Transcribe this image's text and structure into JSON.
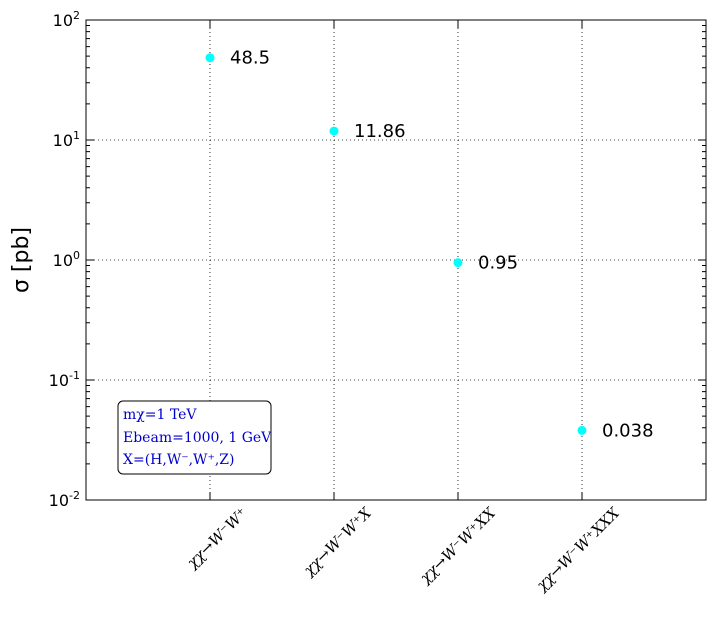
{
  "chart_data": {
    "type": "scatter",
    "ylabel": "σ [pb]",
    "yscale": "log",
    "ylim": [
      0.01,
      100
    ],
    "yticks": [
      {
        "base": "10",
        "exp": "2",
        "value": 100
      },
      {
        "base": "10",
        "exp": "1",
        "value": 10
      },
      {
        "base": "10",
        "exp": "0",
        "value": 1
      },
      {
        "base": "10",
        "exp": "-1",
        "value": 0.1
      },
      {
        "base": "10",
        "exp": "-2",
        "value": 0.01
      }
    ],
    "categories": [
      "χχ→W⁻W⁺",
      "χχ→W⁻W⁺X",
      "χχ→W⁻W⁺XX",
      "χχ→W⁻W⁺XXX"
    ],
    "values": [
      48.5,
      11.86,
      0.95,
      0.038
    ],
    "value_labels": [
      "48.5",
      "11.86",
      "0.95",
      "0.038"
    ],
    "marker_color": "#00ffff",
    "grid": true,
    "annotation": {
      "lines": [
        "mχ=1 TeV",
        "Ebeam=1000, 1 GeV",
        "X=(H,W⁻,W⁺,Z)"
      ],
      "color": "#0000cc",
      "placement": "lower-left"
    }
  }
}
